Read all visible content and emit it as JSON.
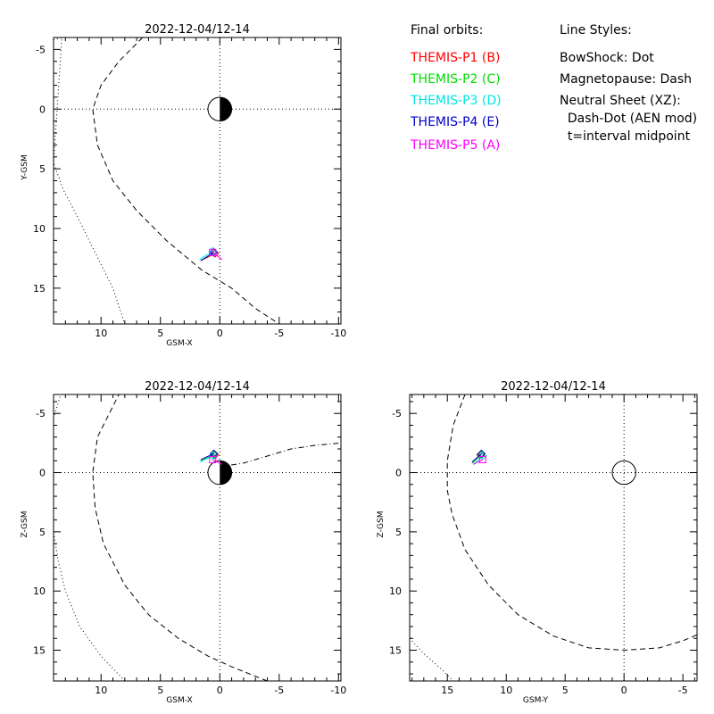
{
  "legend": {
    "orbits_title": "Final orbits:",
    "orbits": [
      {
        "label": "THEMIS-P1 (B)",
        "color": "#ff0000"
      },
      {
        "label": "THEMIS-P2 (C)",
        "color": "#00dd00"
      },
      {
        "label": "THEMIS-P3 (D)",
        "color": "#00e5e5"
      },
      {
        "label": "THEMIS-P4 (E)",
        "color": "#0000cc"
      },
      {
        "label": "THEMIS-P5 (A)",
        "color": "#ff00ff"
      }
    ],
    "styles_title": "Line Styles:",
    "styles": [
      "BowShock: Dot",
      "Magnetopause: Dash",
      "Neutral Sheet (XZ):",
      "  Dash-Dot (AEN mod)",
      "  t=interval midpoint"
    ]
  },
  "chart_data": [
    {
      "type": "scatter",
      "title": "2022-12-04/12-14",
      "xlabel": "GSM-X",
      "ylabel": "Y-GSM",
      "xlim": [
        14,
        -10.2
      ],
      "ylim": [
        -6,
        18
      ],
      "x_ticks": [
        10,
        5,
        0,
        -5,
        -10
      ],
      "y_ticks": [
        -5,
        0,
        5,
        10,
        15
      ],
      "earth": {
        "x": 0,
        "y": 0,
        "r": 1,
        "half_shaded": true
      },
      "magnetopause": {
        "style": "dash",
        "points": [
          [
            6.5,
            -6
          ],
          [
            8.5,
            -4
          ],
          [
            10,
            -2
          ],
          [
            10.7,
            0
          ],
          [
            10.3,
            3
          ],
          [
            9,
            6
          ],
          [
            7,
            8.5
          ],
          [
            4.5,
            11
          ],
          [
            1.5,
            13.5
          ],
          [
            -1,
            15
          ],
          [
            -3,
            16.7
          ],
          [
            -5,
            18
          ]
        ]
      },
      "bow_shock": {
        "style": "dot",
        "points": [
          [
            14,
            -5.8
          ],
          [
            13.3,
            -6
          ],
          [
            14,
            4.5
          ],
          [
            13.2,
            6.7
          ],
          [
            12,
            9
          ],
          [
            10.5,
            12
          ],
          [
            9,
            15
          ],
          [
            8,
            18
          ]
        ]
      },
      "series": [
        {
          "name": "THEMIS-P1 (B)",
          "color": "#ff0000",
          "points": [
            [
              0.4,
              12.1
            ],
            [
              1.6,
              12.7
            ]
          ],
          "marker": "diamond"
        },
        {
          "name": "THEMIS-P2 (C)",
          "color": "#00dd00",
          "points": [
            [
              0.5,
              12.0
            ],
            [
              1.6,
              12.7
            ]
          ],
          "marker": "diamond"
        },
        {
          "name": "THEMIS-P3 (D)",
          "color": "#00e5e5",
          "points": [
            [
              0.6,
              11.9
            ],
            [
              1.7,
              12.6
            ]
          ],
          "marker": "diamond"
        },
        {
          "name": "THEMIS-P4 (E)",
          "color": "#0000cc",
          "points": [
            [
              0.5,
              12.0
            ],
            [
              1.6,
              12.7
            ]
          ],
          "marker": "diamond"
        },
        {
          "name": "THEMIS-P5 (A)",
          "color": "#ff00ff",
          "points": [
            [
              0.6,
              12.0
            ],
            [
              -0.2,
              12.6
            ]
          ],
          "marker": "square"
        }
      ]
    },
    {
      "type": "scatter",
      "title": "2022-12-04/12-14",
      "xlabel": "GSM-X",
      "ylabel": "Z-GSM",
      "xlim": [
        14,
        -10.2
      ],
      "ylim": [
        -6.6,
        17.6
      ],
      "x_ticks": [
        10,
        5,
        0,
        -5,
        -10
      ],
      "y_ticks": [
        -5,
        0,
        5,
        10,
        15
      ],
      "earth": {
        "x": 0,
        "y": 0,
        "r": 1,
        "half_shaded": true
      },
      "magnetopause": {
        "style": "dash",
        "points": [
          [
            -4,
            17.6
          ],
          [
            -1,
            16.4
          ],
          [
            1,
            15.5
          ],
          [
            3.5,
            14
          ],
          [
            6,
            12
          ],
          [
            8,
            9.5
          ],
          [
            9.8,
            6
          ],
          [
            10.5,
            3
          ],
          [
            10.7,
            0
          ],
          [
            10.3,
            -3
          ],
          [
            9.3,
            -5
          ],
          [
            8.5,
            -6.6
          ]
        ]
      },
      "bow_shock": {
        "style": "dot",
        "points": [
          [
            8,
            17.6
          ],
          [
            10,
            15.5
          ],
          [
            11.8,
            13
          ],
          [
            13,
            10
          ],
          [
            13.6,
            7.5
          ],
          [
            14,
            5
          ]
        ]
      },
      "bow_shock_2": {
        "style": "dot",
        "points": [
          [
            14,
            -4.6
          ],
          [
            13.4,
            -6.6
          ]
        ]
      },
      "neutral_sheet": {
        "style": "dash-dot",
        "points": [
          [
            0,
            -0.5
          ],
          [
            -2,
            -0.8
          ],
          [
            -4,
            -1.4
          ],
          [
            -6,
            -2
          ],
          [
            -8,
            -2.3
          ],
          [
            -10.2,
            -2.5
          ]
        ]
      },
      "series": [
        {
          "name": "THEMIS-P1 (B)",
          "color": "#ff0000",
          "points": [
            [
              0.4,
              -1.5
            ],
            [
              1.6,
              -1.0
            ]
          ],
          "marker": "diamond"
        },
        {
          "name": "THEMIS-P2 (C)",
          "color": "#00dd00",
          "points": [
            [
              0.5,
              -1.5
            ],
            [
              1.6,
              -1.0
            ]
          ],
          "marker": "diamond"
        },
        {
          "name": "THEMIS-P3 (D)",
          "color": "#00e5e5",
          "points": [
            [
              0.6,
              -1.4
            ],
            [
              1.7,
              -0.9
            ]
          ],
          "marker": "diamond"
        },
        {
          "name": "THEMIS-P4 (E)",
          "color": "#0000cc",
          "points": [
            [
              0.5,
              -1.6
            ],
            [
              1.6,
              -1.1
            ]
          ],
          "marker": "diamond"
        },
        {
          "name": "THEMIS-P5 (A)",
          "color": "#ff00ff",
          "points": [
            [
              0.6,
              -1.1
            ],
            [
              -0.2,
              -0.7
            ]
          ],
          "marker": "square"
        }
      ]
    },
    {
      "type": "scatter",
      "title": "2022-12-04/12-14",
      "xlabel": "GSM-Y",
      "ylabel": "Z-GSM",
      "xlim": [
        18.2,
        -6.2
      ],
      "ylim": [
        -6.6,
        17.6
      ],
      "x_ticks": [
        15,
        10,
        5,
        0,
        -5
      ],
      "y_ticks": [
        -5,
        0,
        5,
        10,
        15
      ],
      "earth": {
        "x": 0,
        "y": 0,
        "r": 1,
        "half_shaded": false
      },
      "magnetopause": {
        "style": "dash",
        "points": [
          [
            13.5,
            -6.6
          ],
          [
            14.5,
            -4
          ],
          [
            15,
            -1
          ],
          [
            15,
            1.5
          ],
          [
            14.6,
            3.5
          ],
          [
            13.5,
            6.5
          ],
          [
            11.5,
            9.5
          ],
          [
            9,
            12
          ],
          [
            6,
            13.8
          ],
          [
            3,
            14.8
          ],
          [
            0,
            15
          ],
          [
            -3,
            14.8
          ],
          [
            -5,
            14.2
          ],
          [
            -6.2,
            13.7
          ]
        ]
      },
      "bow_shock": {
        "style": "dot",
        "points": [
          [
            18.2,
            14
          ],
          [
            17,
            15.3
          ],
          [
            15.5,
            16.6
          ],
          [
            14.5,
            17.6
          ]
        ]
      },
      "series": [
        {
          "name": "THEMIS-P1 (B)",
          "color": "#ff0000",
          "points": [
            [
              12.2,
              -1.5
            ],
            [
              12.9,
              -0.8
            ]
          ],
          "marker": "diamond"
        },
        {
          "name": "THEMIS-P2 (C)",
          "color": "#00dd00",
          "points": [
            [
              12.1,
              -1.5
            ],
            [
              12.9,
              -0.8
            ]
          ],
          "marker": "diamond"
        },
        {
          "name": "THEMIS-P3 (D)",
          "color": "#00e5e5",
          "points": [
            [
              12.0,
              -1.4
            ],
            [
              12.8,
              -0.7
            ]
          ],
          "marker": "diamond"
        },
        {
          "name": "THEMIS-P4 (E)",
          "color": "#0000cc",
          "points": [
            [
              12.1,
              -1.6
            ],
            [
              12.9,
              -0.9
            ]
          ],
          "marker": "diamond"
        },
        {
          "name": "THEMIS-P5 (A)",
          "color": "#ff00ff",
          "points": [
            [
              12.0,
              -1.1
            ],
            [
              12.8,
              -0.7
            ]
          ],
          "marker": "square"
        }
      ]
    }
  ]
}
